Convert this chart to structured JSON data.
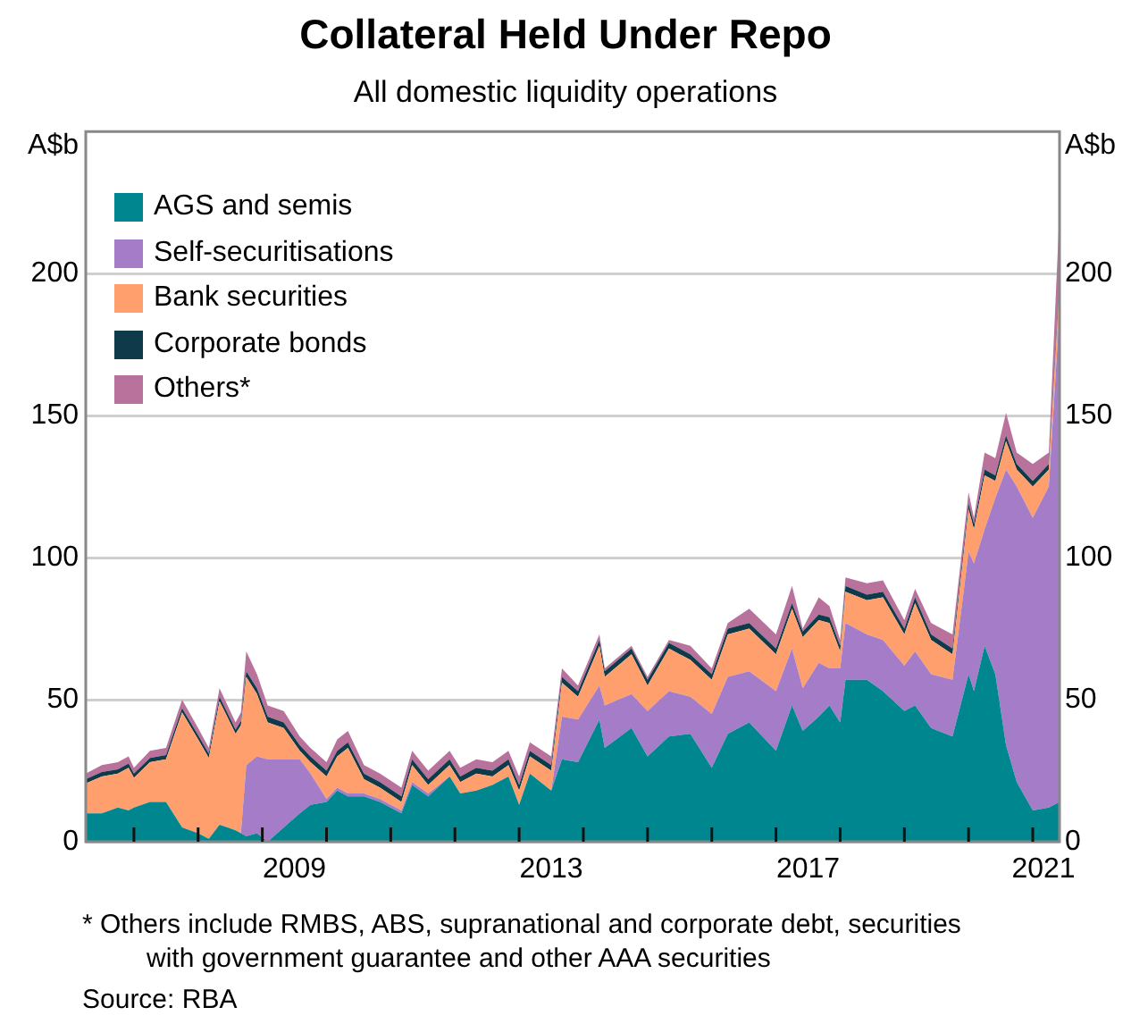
{
  "chart_data": {
    "type": "area",
    "title": "Collateral Held Under Repo",
    "subtitle": "All domestic liquidity operations",
    "ylabel": "A$b",
    "y2label": "A$b",
    "stacked": true,
    "grid": "y",
    "legend": "top left",
    "x": [
      "2006-04",
      "2006-07",
      "2006-10",
      "2006-12",
      "2007-01",
      "2007-04",
      "2007-07",
      "2007-10",
      "2008-01",
      "2008-03",
      "2008-05",
      "2008-08",
      "2008-09",
      "2008-10",
      "2008-12",
      "2009-02",
      "2009-05",
      "2009-08",
      "2009-10",
      "2010-01",
      "2010-03",
      "2010-05",
      "2010-08",
      "2010-11",
      "2011-03",
      "2011-05",
      "2011-08",
      "2011-12",
      "2012-02",
      "2012-05",
      "2012-08",
      "2012-11",
      "2013-01",
      "2013-03",
      "2013-07",
      "2013-09",
      "2013-12",
      "2014-04",
      "2014-05",
      "2014-10",
      "2015-01",
      "2015-05",
      "2015-09",
      "2016-01",
      "2016-04",
      "2016-08",
      "2017-01",
      "2017-04",
      "2017-06",
      "2017-09",
      "2017-11",
      "2018-01",
      "2018-02",
      "2018-06",
      "2018-09",
      "2019-01",
      "2019-03",
      "2019-06",
      "2019-10",
      "2020-01",
      "2020-02",
      "2020-04",
      "2020-06",
      "2020-08",
      "2020-10",
      "2021-01",
      "2021-04",
      "2021-06"
    ],
    "series": [
      {
        "name": "AGS and semis",
        "color": "#00868f",
        "values": [
          10,
          10,
          12,
          11,
          12,
          14,
          14,
          5,
          3,
          1,
          6,
          4,
          3,
          2,
          3,
          0,
          5,
          10,
          13,
          14,
          18,
          16,
          16,
          14,
          10,
          20,
          16,
          23,
          17,
          18,
          20,
          23,
          13,
          24,
          18,
          29,
          28,
          43,
          33,
          40,
          30,
          37,
          38,
          26,
          38,
          42,
          32,
          48,
          39,
          44,
          48,
          42,
          57,
          57,
          53,
          46,
          48,
          40,
          37,
          59,
          53,
          69,
          59,
          34,
          21,
          11,
          12,
          14
        ]
      },
      {
        "name": "Self-securitisations",
        "color": "#a57cc7",
        "values": [
          0,
          0,
          0,
          0,
          0,
          0,
          0,
          0,
          0,
          0,
          0,
          0,
          0,
          25,
          27,
          29,
          24,
          19,
          11,
          1,
          1,
          1,
          1,
          1,
          1,
          1,
          1,
          0,
          0,
          0,
          0,
          0,
          0,
          0,
          0,
          15,
          15,
          12,
          15,
          12,
          16,
          16,
          13,
          19,
          20,
          18,
          21,
          20,
          15,
          19,
          13,
          19,
          20,
          16,
          18,
          16,
          19,
          19,
          20,
          43,
          45,
          41,
          62,
          97,
          104,
          103,
          113,
          173
        ]
      },
      {
        "name": "Bank securities",
        "color": "#ff9f6e",
        "values": [
          10.5,
          13,
          12,
          15,
          10.5,
          14,
          15,
          40.5,
          33,
          28.5,
          43.5,
          34,
          38,
          31,
          22,
          13,
          11,
          3,
          4,
          8,
          11,
          16,
          5,
          4,
          3,
          6,
          3,
          4,
          4,
          6,
          3,
          4,
          5,
          6,
          7,
          12,
          8,
          14,
          10,
          14,
          9,
          15,
          13,
          12,
          15,
          15,
          13,
          14,
          18,
          15,
          16,
          6,
          11,
          12,
          15,
          11,
          17,
          12,
          9,
          15,
          12,
          19,
          6,
          10,
          6,
          11,
          6,
          8
        ]
      },
      {
        "name": "Corporate bonds",
        "color": "#0e3a4a",
        "values": [
          1.5,
          1.5,
          1.5,
          1.5,
          1.5,
          1.5,
          1.5,
          1.5,
          1.5,
          1.5,
          1.5,
          1.5,
          1.5,
          2,
          2,
          2,
          2,
          2,
          2,
          2,
          2,
          2,
          2,
          2,
          2,
          2,
          2,
          2,
          2,
          2,
          2,
          2,
          2,
          2,
          2,
          2,
          2,
          2,
          2,
          2,
          2,
          2,
          2,
          2,
          2,
          2,
          2,
          2,
          2,
          2,
          2,
          2,
          2,
          2,
          2,
          2,
          2,
          2,
          2,
          2,
          2,
          2,
          2,
          2,
          2,
          2,
          2,
          2
        ]
      },
      {
        "name": "Others*",
        "color": "#b8729b",
        "values": [
          2,
          2.5,
          2.5,
          2.5,
          2,
          2.5,
          2.5,
          3,
          2.5,
          2,
          3,
          2.5,
          3,
          7,
          5,
          4,
          4,
          3,
          3,
          3,
          4,
          4,
          3,
          3,
          3,
          3,
          3,
          3,
          3,
          3,
          3,
          3,
          3,
          3,
          3,
          3,
          2,
          2,
          1,
          1,
          1,
          1,
          3,
          2,
          2,
          5,
          5,
          6,
          1,
          6,
          4,
          2,
          3,
          4,
          4,
          3,
          3,
          4,
          5,
          4,
          2,
          6,
          6,
          8,
          4,
          6,
          4,
          25
        ]
      }
    ],
    "xlim": [
      "2006-04",
      "2021-06"
    ],
    "xticks": [
      {
        "value": "2007-01",
        "label": null
      },
      {
        "value": "2008-01",
        "label": null
      },
      {
        "value": "2009-01",
        "label": null
      },
      {
        "value": "2009-07",
        "label": "2009"
      },
      {
        "value": "2010-01",
        "label": null
      },
      {
        "value": "2011-01",
        "label": null
      },
      {
        "value": "2012-01",
        "label": null
      },
      {
        "value": "2013-01",
        "label": null
      },
      {
        "value": "2013-07",
        "label": "2013"
      },
      {
        "value": "2014-01",
        "label": null
      },
      {
        "value": "2015-01",
        "label": null
      },
      {
        "value": "2016-01",
        "label": null
      },
      {
        "value": "2017-01",
        "label": null
      },
      {
        "value": "2017-07",
        "label": "2017"
      },
      {
        "value": "2018-01",
        "label": null
      },
      {
        "value": "2019-01",
        "label": null
      },
      {
        "value": "2020-01",
        "label": null
      },
      {
        "value": "2021-01",
        "label": null
      },
      {
        "value": "2021-03",
        "label": "2021"
      }
    ],
    "ylim": [
      0,
      250
    ],
    "yticks": [
      0,
      50,
      100,
      150,
      200
    ],
    "y2lim": [
      0,
      250
    ],
    "y2ticks": [
      0,
      50,
      100,
      150,
      200
    ],
    "annotations": [
      "* Others include RMBS, ABS, supranational and corporate debt, securities with government guarantee and other AAA securities",
      "Source: RBA"
    ]
  }
}
